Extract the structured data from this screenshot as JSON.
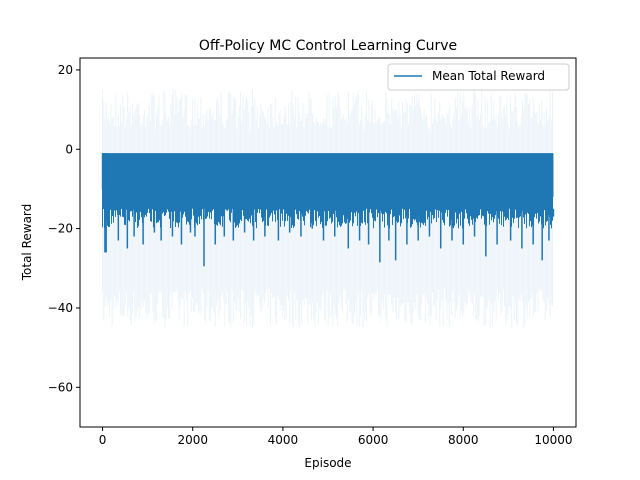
{
  "chart_data": {
    "type": "line",
    "title": "Off-Policy MC Control Learning Curve",
    "xlabel": "Episode",
    "ylabel": "Total Reward",
    "xlim": [
      -500,
      10500
    ],
    "ylim": [
      -70,
      23
    ],
    "xticks": [
      0,
      2000,
      4000,
      6000,
      8000,
      10000
    ],
    "yticks": [
      -60,
      -40,
      -20,
      0,
      20
    ],
    "grid": false,
    "legend": {
      "placement": "top-right",
      "entries": [
        "Mean Total Reward"
      ]
    },
    "series": [
      {
        "name": "Mean Total Reward",
        "color": "#1f77b4",
        "x_range": [
          0,
          10000
        ],
        "mean_upper": -1,
        "mean_typical_lower": -15,
        "start_values": [
          -10,
          -13,
          -6,
          -26,
          -15,
          -9
        ],
        "spikes": [
          {
            "x": 80,
            "y": -26
          },
          {
            "x": 350,
            "y": -23
          },
          {
            "x": 550,
            "y": -25
          },
          {
            "x": 700,
            "y": -22
          },
          {
            "x": 900,
            "y": -24
          },
          {
            "x": 1150,
            "y": -21
          },
          {
            "x": 1300,
            "y": -23
          },
          {
            "x": 1550,
            "y": -22
          },
          {
            "x": 1750,
            "y": -24
          },
          {
            "x": 1950,
            "y": -21
          },
          {
            "x": 2050,
            "y": -22
          },
          {
            "x": 2250,
            "y": -29.5
          },
          {
            "x": 2500,
            "y": -24
          },
          {
            "x": 2700,
            "y": -22
          },
          {
            "x": 2900,
            "y": -23
          },
          {
            "x": 3150,
            "y": -21
          },
          {
            "x": 3350,
            "y": -23
          },
          {
            "x": 3600,
            "y": -22
          },
          {
            "x": 3900,
            "y": -23
          },
          {
            "x": 4150,
            "y": -21
          },
          {
            "x": 4400,
            "y": -22
          },
          {
            "x": 4650,
            "y": -20
          },
          {
            "x": 4900,
            "y": -23
          },
          {
            "x": 5150,
            "y": -22
          },
          {
            "x": 5450,
            "y": -25
          },
          {
            "x": 5700,
            "y": -23
          },
          {
            "x": 5900,
            "y": -24
          },
          {
            "x": 6150,
            "y": -28.5
          },
          {
            "x": 6350,
            "y": -23
          },
          {
            "x": 6500,
            "y": -28
          },
          {
            "x": 6750,
            "y": -24
          },
          {
            "x": 7000,
            "y": -23
          },
          {
            "x": 7250,
            "y": -22
          },
          {
            "x": 7500,
            "y": -25
          },
          {
            "x": 7750,
            "y": -23
          },
          {
            "x": 8000,
            "y": -24
          },
          {
            "x": 8250,
            "y": -22
          },
          {
            "x": 8500,
            "y": -27
          },
          {
            "x": 8750,
            "y": -24
          },
          {
            "x": 9050,
            "y": -23
          },
          {
            "x": 9300,
            "y": -25
          },
          {
            "x": 9550,
            "y": -24
          },
          {
            "x": 9750,
            "y": -28
          },
          {
            "x": 9900,
            "y": -23
          },
          {
            "x": 10000,
            "y": -17
          }
        ],
        "band": {
          "upper": 15,
          "lower": -45,
          "opacity": 0.08
        }
      }
    ]
  }
}
